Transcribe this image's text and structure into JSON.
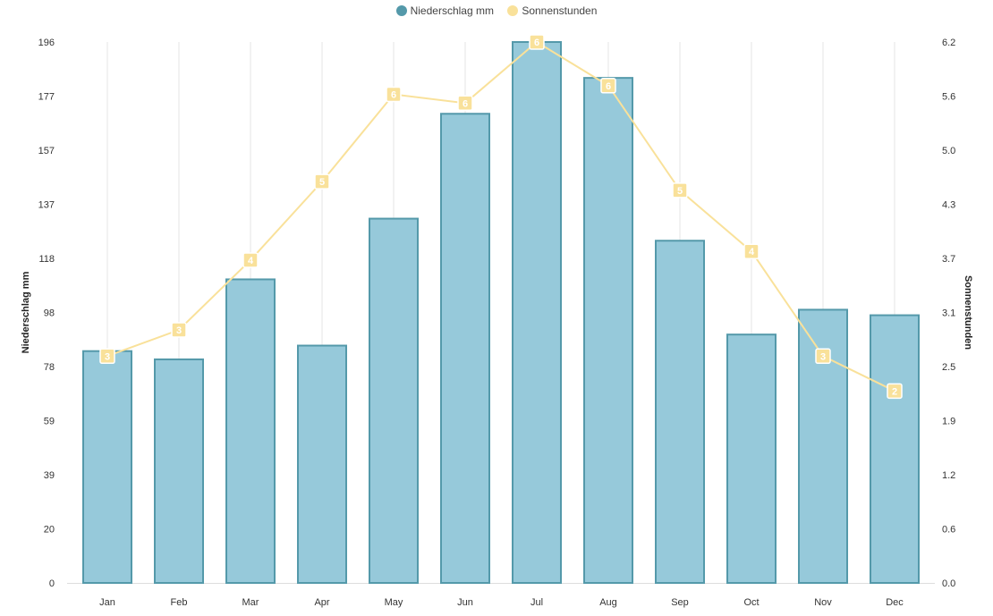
{
  "chart_data": {
    "type": "bar",
    "categories": [
      "Jan",
      "Feb",
      "Mar",
      "Apr",
      "May",
      "Jun",
      "Jul",
      "Aug",
      "Sep",
      "Oct",
      "Nov",
      "Dec"
    ],
    "series": [
      {
        "name": "Niederschlag mm",
        "type": "bar",
        "axis": "left",
        "color": "#96C9DA",
        "border": "#5499AA",
        "values": [
          84,
          81,
          110,
          86,
          132,
          170,
          196,
          183,
          124,
          90,
          99,
          97
        ]
      },
      {
        "name": "Sonnenstunden",
        "type": "line",
        "axis": "right",
        "color": "#F9E19A",
        "values": [
          2.6,
          2.9,
          3.7,
          4.6,
          5.6,
          5.5,
          6.2,
          5.7,
          4.5,
          3.8,
          2.6,
          2.2
        ],
        "labels": [
          "3",
          "3",
          "4",
          "5",
          "6",
          "6",
          "6",
          "6",
          "5",
          "4",
          "3",
          "2"
        ]
      }
    ],
    "y_left": {
      "label": "Niederschlag mm",
      "ticks": [
        "0",
        "20",
        "39",
        "59",
        "78",
        "98",
        "118",
        "137",
        "157",
        "177",
        "196"
      ],
      "lim": [
        0,
        196
      ]
    },
    "y_right": {
      "label": "Sonnenstunden",
      "ticks": [
        "0.0",
        "0.6",
        "1.2",
        "1.9",
        "2.5",
        "3.1",
        "3.7",
        "4.3",
        "5.0",
        "5.6",
        "6.2"
      ],
      "lim": [
        0,
        6.2
      ]
    },
    "grid": "vertical",
    "legend": "top-center"
  }
}
